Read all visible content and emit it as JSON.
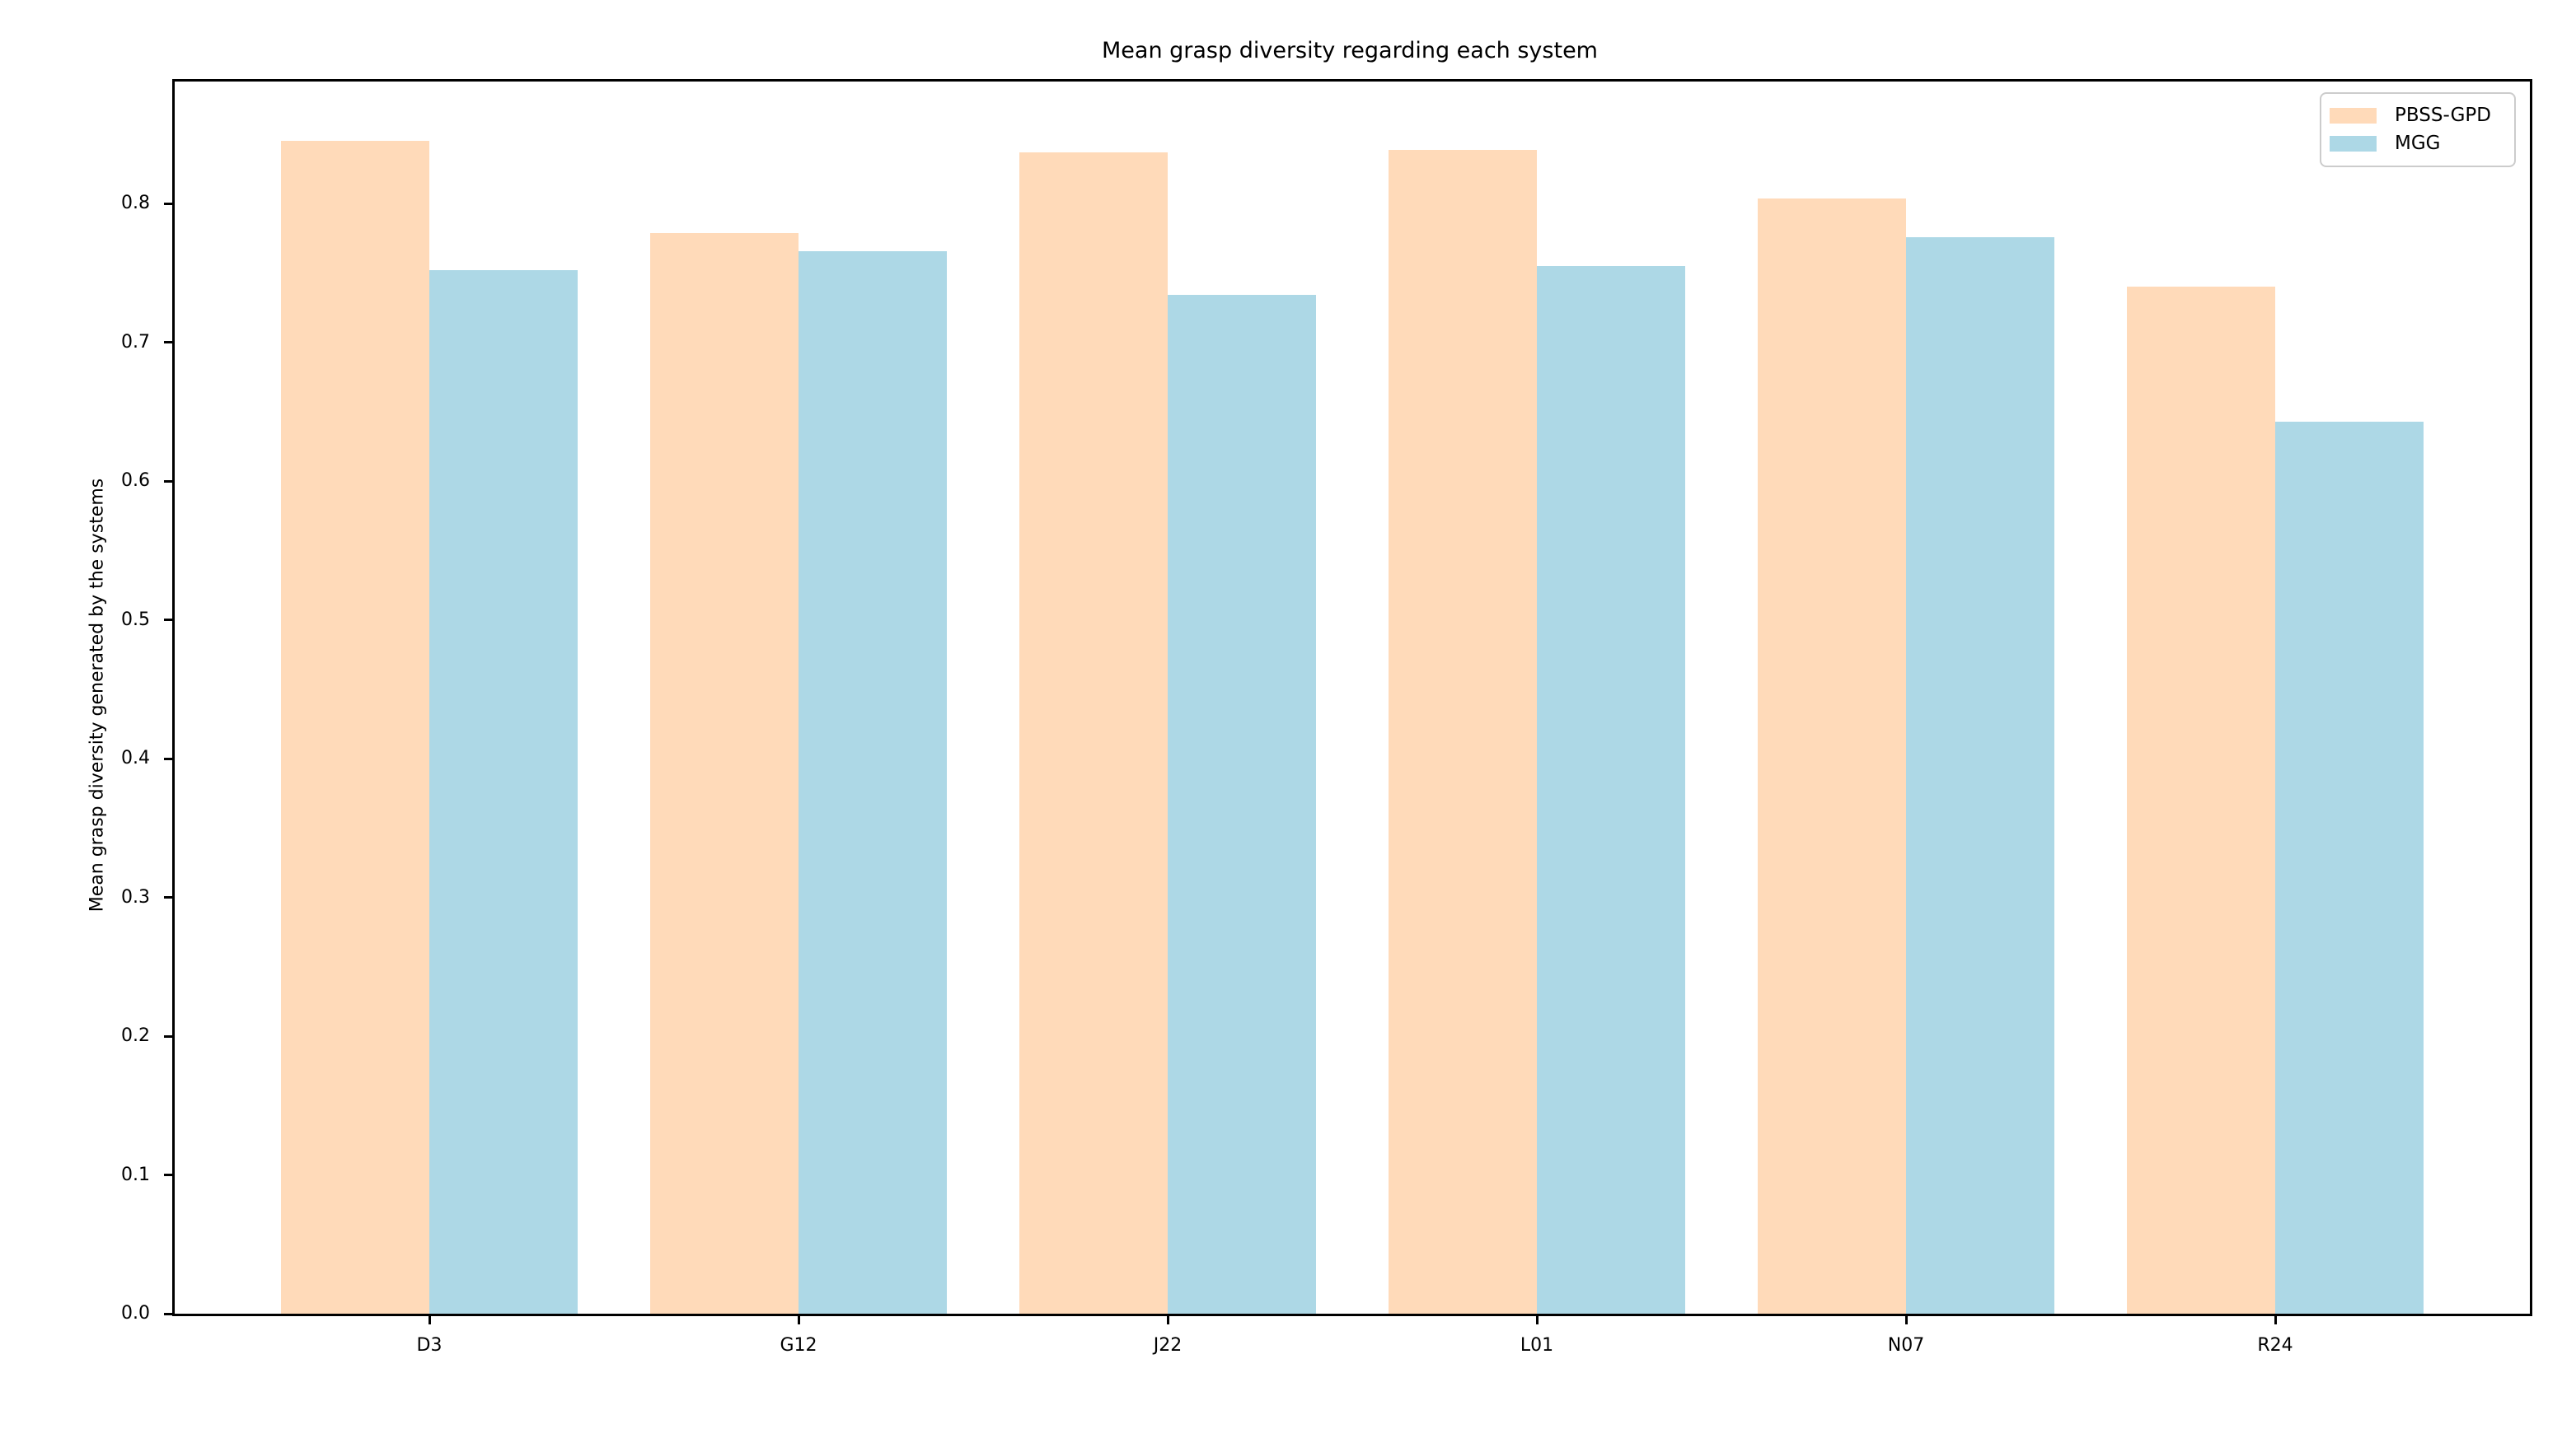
{
  "chart_data": {
    "type": "bar",
    "title": "Mean grasp diversity regarding each system",
    "xlabel": "",
    "ylabel": "Mean grasp diversity generated by the systems",
    "categories": [
      "D3",
      "G12",
      "J22",
      "L01",
      "N07",
      "R24"
    ],
    "series": [
      {
        "name": "PBSS-GPD",
        "color": "#FFDAB9",
        "values": [
          0.845,
          0.779,
          0.837,
          0.839,
          0.804,
          0.74
        ]
      },
      {
        "name": "MGG",
        "color": "#ADD8E6",
        "values": [
          0.752,
          0.766,
          0.734,
          0.755,
          0.776,
          0.643
        ]
      }
    ],
    "ylim": [
      0.0,
      0.888
    ],
    "yticks": [
      0.0,
      0.1,
      0.2,
      0.3,
      0.4,
      0.5,
      0.6,
      0.7,
      0.8
    ],
    "grid": false,
    "legend_position": "upper right",
    "spine_color": "#000000",
    "background_color": "#ffffff"
  }
}
